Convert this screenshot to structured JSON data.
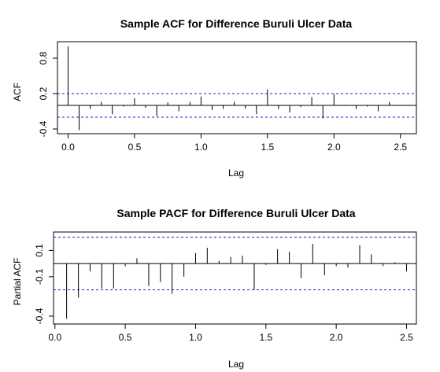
{
  "chart_data": [
    {
      "type": "bar",
      "title": "Sample ACF for Difference Buruli Ulcer Data",
      "xlabel": "Lag",
      "ylabel": "ACF",
      "xlim": [
        -0.08,
        2.62
      ],
      "ylim": [
        -0.48,
        1.08
      ],
      "xticks": [
        0.0,
        0.5,
        1.0,
        1.5,
        2.0,
        2.5
      ],
      "xtick_labels": [
        "0.0",
        "0.5",
        "1.0",
        "1.5",
        "2.0",
        "2.5"
      ],
      "yticks": [
        -0.4,
        0.2,
        0.8
      ],
      "ytick_labels": [
        "-0.4",
        "0.2",
        "0.8"
      ],
      "confidence_bounds": [
        0.2,
        -0.2
      ],
      "grid": false,
      "x": [
        0.0,
        0.083,
        0.167,
        0.25,
        0.333,
        0.417,
        0.5,
        0.583,
        0.667,
        0.75,
        0.833,
        0.917,
        1.0,
        1.083,
        1.167,
        1.25,
        1.333,
        1.417,
        1.5,
        1.583,
        1.667,
        1.75,
        1.833,
        1.917,
        2.0,
        2.083,
        2.167,
        2.25,
        2.333,
        2.417
      ],
      "values": [
        1.0,
        -0.42,
        -0.06,
        0.06,
        -0.15,
        -0.02,
        0.12,
        -0.04,
        -0.18,
        0.05,
        -0.1,
        0.06,
        0.15,
        -0.08,
        -0.06,
        0.06,
        -0.05,
        -0.15,
        0.27,
        -0.06,
        -0.12,
        -0.03,
        0.14,
        -0.22,
        0.19,
        -0.01,
        -0.06,
        -0.02,
        -0.1,
        0.06
      ]
    },
    {
      "type": "bar",
      "title": "Sample PACF for Difference Buruli Ulcer Data",
      "xlabel": "Lag",
      "ylabel": "Partial ACF",
      "xlim": [
        -0.01,
        2.57
      ],
      "ylim": [
        -0.46,
        0.24
      ],
      "xticks": [
        0.0,
        0.5,
        1.0,
        1.5,
        2.0,
        2.5
      ],
      "xtick_labels": [
        "0.0",
        "0.5",
        "1.0",
        "1.5",
        "2.0",
        "2.5"
      ],
      "yticks": [
        -0.4,
        -0.1,
        0.1
      ],
      "ytick_labels": [
        "-0.4",
        "-0.1",
        "0.1"
      ],
      "confidence_bounds": [
        0.2,
        -0.2
      ],
      "grid": false,
      "x": [
        0.083,
        0.167,
        0.25,
        0.333,
        0.417,
        0.5,
        0.583,
        0.667,
        0.75,
        0.833,
        0.917,
        1.0,
        1.083,
        1.167,
        1.25,
        1.333,
        1.417,
        1.5,
        1.583,
        1.667,
        1.75,
        1.833,
        1.917,
        2.0,
        2.083,
        2.167,
        2.25,
        2.333,
        2.417,
        2.5
      ],
      "values": [
        -0.42,
        -0.26,
        -0.06,
        -0.19,
        -0.19,
        -0.02,
        0.04,
        -0.17,
        -0.14,
        -0.23,
        -0.1,
        0.08,
        0.12,
        0.02,
        0.05,
        0.06,
        -0.2,
        -0.01,
        0.11,
        0.09,
        -0.11,
        0.15,
        -0.09,
        -0.02,
        -0.03,
        0.14,
        0.07,
        -0.02,
        0.01,
        -0.06
      ]
    }
  ]
}
